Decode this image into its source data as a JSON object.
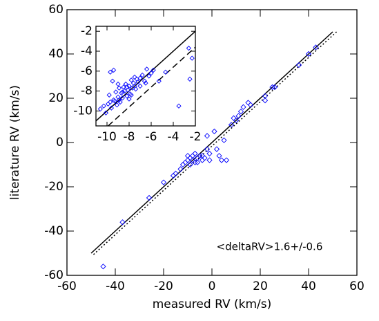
{
  "chart_data": [
    {
      "type": "scatter",
      "xlabel": "measured RV (km/s)",
      "ylabel": "literature RV (km/s)",
      "xlim": [
        -60,
        60
      ],
      "ylim": [
        -60,
        60
      ],
      "xticks": [
        -60,
        -40,
        -20,
        0,
        20,
        40,
        60
      ],
      "yticks": [
        -60,
        -40,
        -20,
        0,
        20,
        40,
        60
      ],
      "color": "#0000ff",
      "x": [
        -45,
        -37,
        -26,
        -15,
        -13,
        -12,
        -10,
        -9,
        -8,
        -7,
        -8,
        -6,
        -5,
        -4,
        -3,
        -11,
        -7,
        -2,
        2,
        -1,
        3,
        4,
        6,
        -2,
        1,
        5,
        8,
        10,
        11,
        13,
        15,
        16,
        22,
        22,
        25,
        26,
        36,
        40,
        43,
        -16,
        -20,
        -9,
        -6,
        -4,
        -10,
        -1,
        9,
        12
      ],
      "values": [
        -56,
        -36,
        -25,
        -14,
        -12,
        -10,
        -8,
        -7,
        -8,
        -9,
        -6,
        -7,
        -6,
        -8,
        -7,
        -9,
        -5,
        -3,
        -3,
        -8,
        -6,
        -8,
        -8,
        3,
        5,
        1,
        8,
        10,
        12,
        16,
        18,
        17,
        21,
        19,
        25,
        25,
        35,
        40,
        43,
        -15,
        -18,
        -10,
        -9,
        -6,
        -6,
        -5,
        11,
        14
      ],
      "lines": [
        {
          "style": "solid",
          "x": [
            -50,
            50
          ],
          "y": [
            -50,
            50
          ]
        },
        {
          "style": "dotted",
          "x": [
            -49,
            52
          ],
          "y": [
            -50.6,
            50.4
          ]
        }
      ],
      "annotations": [
        "<deltaRV>",
        "1.6+/-0.6"
      ]
    },
    {
      "type": "scatter",
      "xlim": [
        -11,
        -2
      ],
      "ylim": [
        -11.5,
        -1.5
      ],
      "xticks": [
        -10,
        -8,
        -6,
        -4,
        -2
      ],
      "yticks": [
        -10,
        -8,
        -6,
        -4,
        -2
      ],
      "color": "#0000ff",
      "x": [
        -10.6,
        -10.3,
        -10.1,
        -9.9,
        -9.8,
        -9.7,
        -9.6,
        -9.5,
        -9.4,
        -9.3,
        -9.2,
        -9.1,
        -9.0,
        -8.9,
        -8.8,
        -8.7,
        -8.6,
        -8.5,
        -8.4,
        -8.3,
        -8.2,
        -8.1,
        -8.0,
        -7.9,
        -7.8,
        -7.7,
        -7.6,
        -7.5,
        -7.4,
        -7.3,
        -7.2,
        -7.0,
        -6.8,
        -6.6,
        -6.4,
        -6.2,
        -6.0,
        -5.8,
        -5.3,
        -4.7,
        -3.5,
        -2.6,
        -2.3,
        -2.5,
        -9.7,
        -9.4,
        -8.9,
        -8.6,
        -8.2,
        -7.8,
        -7.5,
        -9.0,
        -8.0,
        -7.0,
        -6.5
      ],
      "values": [
        -9.8,
        -9.5,
        -10.2,
        -9.3,
        -8.4,
        -6.1,
        -9.7,
        -7.0,
        -5.9,
        -9.0,
        -8.1,
        -9.4,
        -8.6,
        -7.7,
        -9.1,
        -8.2,
        -8.7,
        -7.6,
        -8.0,
        -7.3,
        -8.5,
        -7.9,
        -7.5,
        -8.3,
        -6.9,
        -7.7,
        -7.2,
        -6.6,
        -7.8,
        -6.8,
        -7.1,
        -6.7,
        -6.4,
        -7.0,
        -5.8,
        -6.5,
        -6.2,
        -5.9,
        -7.0,
        -6.1,
        -9.5,
        -3.7,
        -4.7,
        -6.8,
        -9.1,
        -8.9,
        -8.9,
        -8.1,
        -7.6,
        -8.4,
        -7.5,
        -7.3,
        -8.8,
        -7.5,
        -7.2
      ],
      "lines": [
        {
          "style": "solid",
          "x": [
            -11,
            -2
          ],
          "y": [
            -11,
            -2
          ]
        },
        {
          "style": "dashed",
          "x": [
            -9.9,
            -2
          ],
          "y": [
            -11.5,
            -3.6
          ]
        }
      ]
    }
  ]
}
